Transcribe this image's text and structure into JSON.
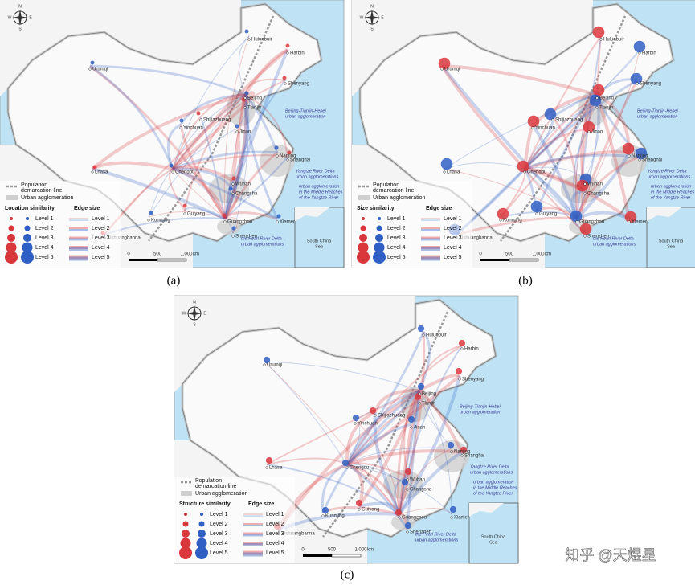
{
  "panels": [
    {
      "caption": "(a)",
      "legend_title": "Location similarity"
    },
    {
      "caption": "(b)",
      "legend_title": "Size similarity"
    },
    {
      "caption": "(c)",
      "legend_title": "Structure similarity"
    }
  ],
  "map": {
    "compass": [
      "N",
      "E",
      "S",
      "W"
    ],
    "cities": [
      "Hulunbuir",
      "Harbin",
      "Urumqi",
      "Shenyang",
      "Beijing",
      "Tianjin",
      "Yinchuan",
      "Shijiazhuang",
      "Jinan",
      "Lhasa",
      "Nanjing",
      "Shanghai",
      "Chengdu",
      "Wuhan",
      "Changsha",
      "Guiyang",
      "Kunming",
      "Guangzhou",
      "Xiamen",
      "Xishuangbanna",
      "Shenzhen"
    ],
    "annotations": [
      {
        "lines": [
          "Beijing-Tianjin-Hebei",
          "urban agglomeration"
        ]
      },
      {
        "lines": [
          "Yangtze River Delta",
          "urban agglomerations"
        ]
      },
      {
        "lines": [
          "urban agglomeration",
          "in the Middle Reaches",
          "of the Yangtze River"
        ]
      },
      {
        "lines": [
          "the Pearl River Delta",
          "urban agglomerations"
        ]
      }
    ],
    "legend": {
      "population_line": [
        "Population",
        "demarcation line"
      ],
      "urban_agglomeration": "Urban agglomeration",
      "edge_title": "Edge size",
      "levels": [
        "Level 1",
        "Level 2",
        "Level 3",
        "Level 4",
        "Level 5"
      ]
    },
    "scale": [
      "0",
      "500",
      "1,000",
      "km"
    ],
    "inset": [
      "South China",
      "Sea"
    ]
  },
  "watermark": "知乎 @天煜星"
}
